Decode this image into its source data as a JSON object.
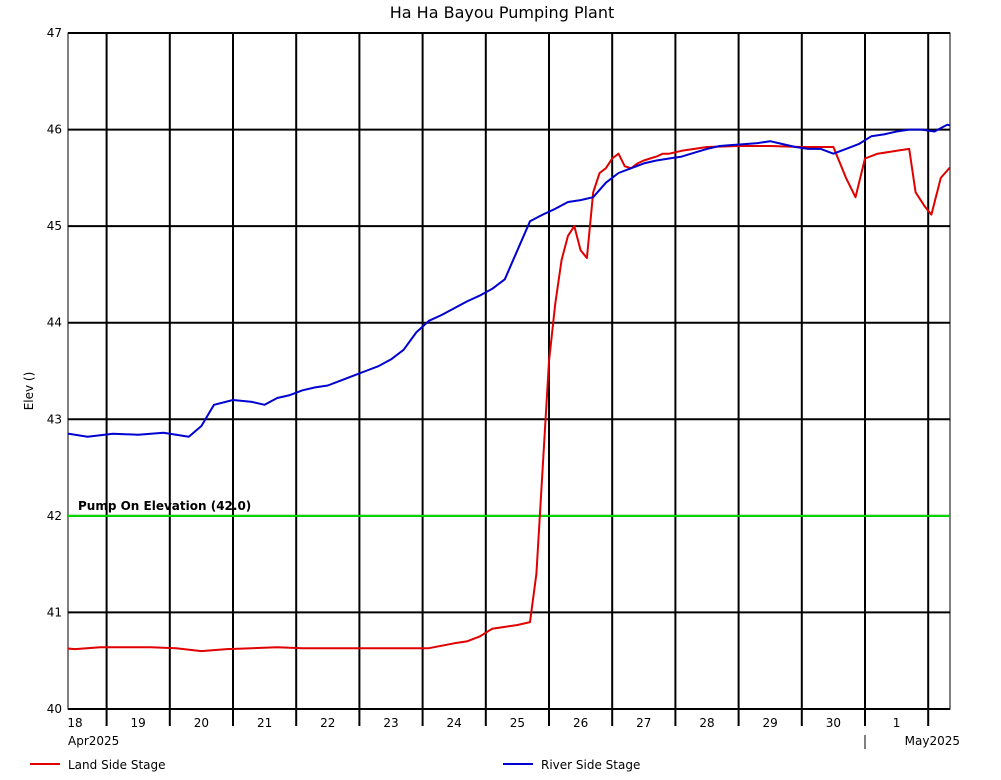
{
  "chart_data": {
    "type": "line",
    "title": "Ha Ha Bayou Pumping Plant",
    "ylabel": "Elev ()",
    "xlabel": "",
    "ylim": [
      40,
      47
    ],
    "yticks": [
      "40",
      "41",
      "42",
      "43",
      "44",
      "45",
      "46",
      "47"
    ],
    "xlim": [
      0,
      13.8
    ],
    "xticks": [
      {
        "pos": 0,
        "label": "18"
      },
      {
        "pos": 1,
        "label": "19"
      },
      {
        "pos": 2,
        "label": "20"
      },
      {
        "pos": 3,
        "label": "21"
      },
      {
        "pos": 4,
        "label": "22"
      },
      {
        "pos": 5,
        "label": "23"
      },
      {
        "pos": 6,
        "label": "24"
      },
      {
        "pos": 7,
        "label": "25"
      },
      {
        "pos": 8,
        "label": "26"
      },
      {
        "pos": 9,
        "label": "27"
      },
      {
        "pos": 10,
        "label": "28"
      },
      {
        "pos": 11,
        "label": "29"
      },
      {
        "pos": 12,
        "label": "30"
      },
      {
        "pos": 13,
        "label": "1"
      }
    ],
    "month_labels": [
      {
        "pos": 0,
        "label": "Apr2025"
      },
      {
        "pos": 13,
        "label": "May2025"
      }
    ],
    "grid": true,
    "legend_position": "bottom",
    "annotation": {
      "text": "Pump On Elevation (42.0)",
      "y": 42.0,
      "color": "#00e000"
    },
    "series": [
      {
        "name": "Land Side Stage",
        "color": "#e00000",
        "x": [
          -0.6,
          0.0,
          0.4,
          0.8,
          1.2,
          1.6,
          2.0,
          2.4,
          2.8,
          3.2,
          3.6,
          4.0,
          4.4,
          4.8,
          5.2,
          5.6,
          6.0,
          6.2,
          6.4,
          6.6,
          6.8,
          7.0,
          7.2,
          7.3,
          7.4,
          7.5,
          7.6,
          7.7,
          7.8,
          7.9,
          8.0,
          8.1,
          8.2,
          8.3,
          8.4,
          8.45,
          8.5,
          8.6,
          8.7,
          8.8,
          8.9,
          9.0,
          9.1,
          9.2,
          9.3,
          9.4,
          9.6,
          10.0,
          10.5,
          11.0,
          11.5,
          12.0,
          12.2,
          12.35,
          12.5,
          12.7,
          13.0,
          13.2,
          13.3,
          13.45,
          13.55,
          13.7,
          13.9,
          14.3,
          14.5
        ],
        "y": [
          40.65,
          40.62,
          40.64,
          40.64,
          40.64,
          40.63,
          40.6,
          40.62,
          40.63,
          40.64,
          40.63,
          40.63,
          40.63,
          40.63,
          40.63,
          40.63,
          40.68,
          40.7,
          40.75,
          40.83,
          40.85,
          40.87,
          40.9,
          41.4,
          42.5,
          43.6,
          44.2,
          44.65,
          44.9,
          45.0,
          44.75,
          44.67,
          45.35,
          45.55,
          45.6,
          45.65,
          45.7,
          45.75,
          45.62,
          45.6,
          45.65,
          45.68,
          45.7,
          45.72,
          45.75,
          45.75,
          45.78,
          45.82,
          45.83,
          45.83,
          45.82,
          45.82,
          45.5,
          45.3,
          45.7,
          45.75,
          45.78,
          45.8,
          45.35,
          45.2,
          45.12,
          45.5,
          45.65,
          45.65,
          45.66
        ]
      },
      {
        "name": "River Side Stage",
        "color": "#0000d0",
        "x": [
          -0.6,
          -0.2,
          0.2,
          0.6,
          1.0,
          1.4,
          1.8,
          2.0,
          2.2,
          2.5,
          2.8,
          3.0,
          3.2,
          3.4,
          3.6,
          3.8,
          4.0,
          4.2,
          4.4,
          4.6,
          4.8,
          5.0,
          5.2,
          5.4,
          5.6,
          5.8,
          6.0,
          6.2,
          6.4,
          6.6,
          6.8,
          7.0,
          7.2,
          7.4,
          7.6,
          7.8,
          8.0,
          8.2,
          8.4,
          8.6,
          8.8,
          9.0,
          9.2,
          9.4,
          9.6,
          9.8,
          10.0,
          10.2,
          10.4,
          10.6,
          10.8,
          11.0,
          11.2,
          11.4,
          11.6,
          11.8,
          12.0,
          12.2,
          12.4,
          12.6,
          12.8,
          13.0,
          13.2,
          13.4,
          13.6,
          13.8,
          14.0,
          14.3,
          14.5
        ],
        "y": [
          42.82,
          42.86,
          42.82,
          42.85,
          42.84,
          42.86,
          42.82,
          42.93,
          43.15,
          43.2,
          43.18,
          43.15,
          43.22,
          43.25,
          43.3,
          43.33,
          43.35,
          43.4,
          43.45,
          43.5,
          43.55,
          43.62,
          43.72,
          43.9,
          44.02,
          44.08,
          44.15,
          44.22,
          44.28,
          44.35,
          44.45,
          44.75,
          45.05,
          45.12,
          45.18,
          45.25,
          45.27,
          45.3,
          45.45,
          45.55,
          45.6,
          45.65,
          45.68,
          45.7,
          45.72,
          45.76,
          45.8,
          45.83,
          45.84,
          45.85,
          45.86,
          45.88,
          45.85,
          45.82,
          45.8,
          45.8,
          45.75,
          45.8,
          45.85,
          45.93,
          45.95,
          45.98,
          46.0,
          46.0,
          45.98,
          46.05,
          46.02,
          46.05,
          46.04
        ]
      },
      {
        "name": "Pump On Elevation (42.0)",
        "color": "#00e000",
        "x": [
          -0.6,
          14.5
        ],
        "y": [
          42.0,
          42.0
        ]
      }
    ]
  }
}
